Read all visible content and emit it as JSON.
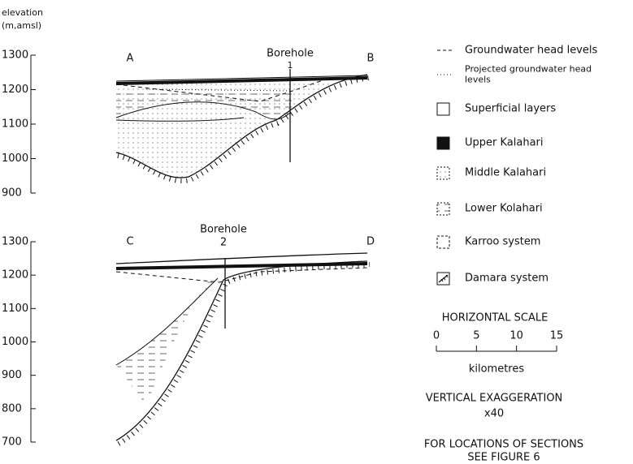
{
  "axis_title": [
    "elevation",
    "(m,amsl)"
  ],
  "sections": [
    {
      "left": "A",
      "right": "B",
      "borehole": {
        "label": "Borehole",
        "number": "1"
      },
      "elevation_ticks": [
        1300,
        1200,
        1100,
        1000,
        900
      ]
    },
    {
      "left": "C",
      "right": "D",
      "borehole": {
        "label": "Borehole",
        "number": "2"
      },
      "elevation_ticks": [
        1300,
        1200,
        1100,
        1000,
        900,
        800,
        700
      ]
    }
  ],
  "legend": [
    {
      "lines": [
        "Groundwater head levels"
      ]
    },
    {
      "lines": [
        "Projected groundwater head",
        "levels"
      ]
    },
    {
      "lines": [
        "Superficial layers"
      ]
    },
    {
      "lines": [
        "Upper Kalahari"
      ]
    },
    {
      "lines": [
        "Middle Kalahari"
      ]
    },
    {
      "lines": [
        "Lower Kolahari"
      ]
    },
    {
      "lines": [
        "Karroo system"
      ]
    },
    {
      "lines": [
        "Damara system"
      ]
    }
  ],
  "scale": {
    "title": "HORIZONTAL SCALE",
    "ticks": [
      0,
      5,
      10,
      15
    ],
    "unit": "kilometres"
  },
  "exaggeration": {
    "title": "VERTICAL EXAGGERATION",
    "value": "x40"
  },
  "note": [
    "FOR LOCATIONS OF SECTIONS",
    "SEE FIGURE 6"
  ]
}
